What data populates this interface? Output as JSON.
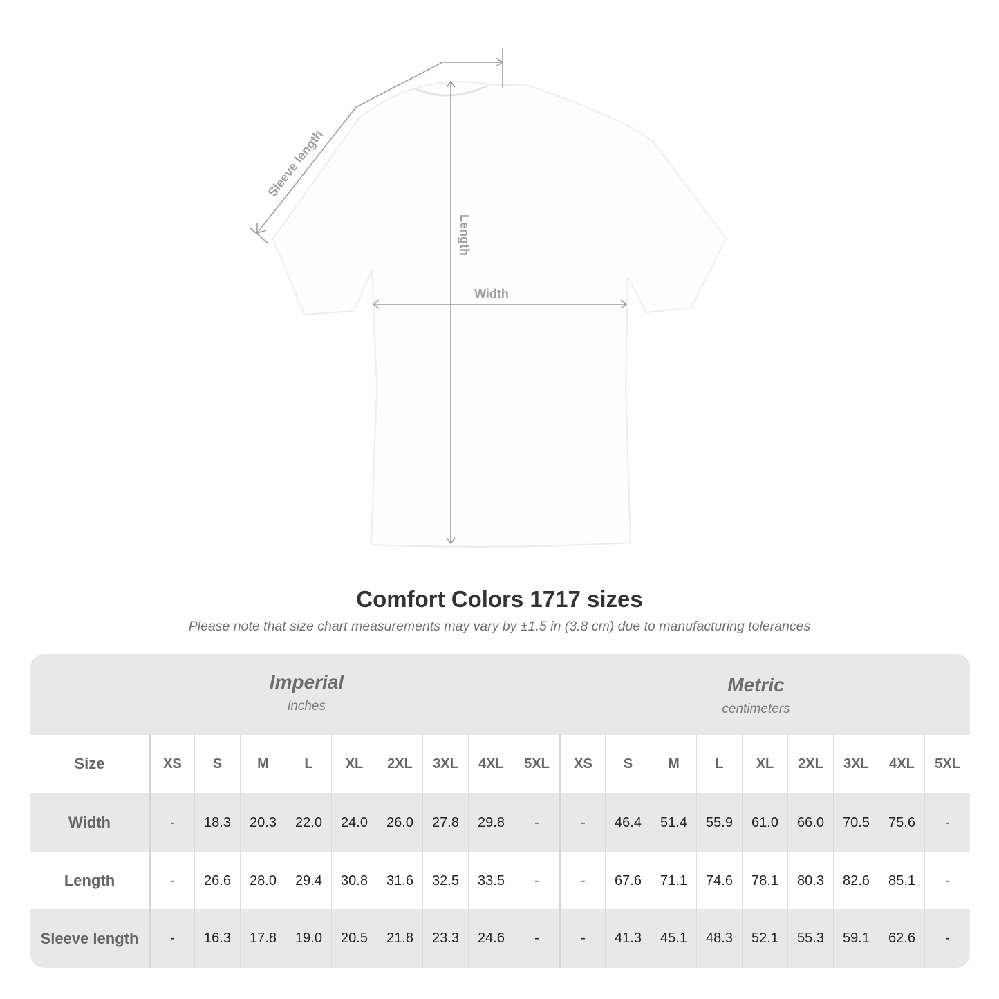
{
  "diagram": {
    "labels": {
      "sleeve": "Sleeve length",
      "length": "Length",
      "width": "Width"
    }
  },
  "title": "Comfort Colors 1717 sizes",
  "note": "Please note that size chart measurements may vary by ±1.5 in (3.8 cm) due to manufacturing tolerances",
  "systems": [
    {
      "name": "Imperial",
      "unit": "inches"
    },
    {
      "name": "Metric",
      "unit": "centimeters"
    }
  ],
  "table": {
    "size_label": "Size",
    "sizes": [
      "XS",
      "S",
      "M",
      "L",
      "XL",
      "2XL",
      "3XL",
      "4XL",
      "5XL"
    ],
    "rows": [
      {
        "label": "Width",
        "imperial": [
          "-",
          "18.3",
          "20.3",
          "22.0",
          "24.0",
          "26.0",
          "27.8",
          "29.8",
          "-"
        ],
        "metric": [
          "-",
          "46.4",
          "51.4",
          "55.9",
          "61.0",
          "66.0",
          "70.5",
          "75.6",
          "-"
        ]
      },
      {
        "label": "Length",
        "imperial": [
          "-",
          "26.6",
          "28.0",
          "29.4",
          "30.8",
          "31.6",
          "32.5",
          "33.5",
          "-"
        ],
        "metric": [
          "-",
          "67.6",
          "71.1",
          "74.6",
          "78.1",
          "80.3",
          "82.6",
          "85.1",
          "-"
        ]
      },
      {
        "label": "Sleeve length",
        "imperial": [
          "-",
          "16.3",
          "17.8",
          "19.0",
          "20.5",
          "21.8",
          "23.3",
          "24.6",
          "-"
        ],
        "metric": [
          "-",
          "41.3",
          "45.1",
          "48.3",
          "52.1",
          "55.3",
          "59.1",
          "62.6",
          "-"
        ]
      }
    ]
  },
  "colors": {
    "band": "#e8e8e8",
    "measure_line": "#999999",
    "title": "#333333"
  }
}
